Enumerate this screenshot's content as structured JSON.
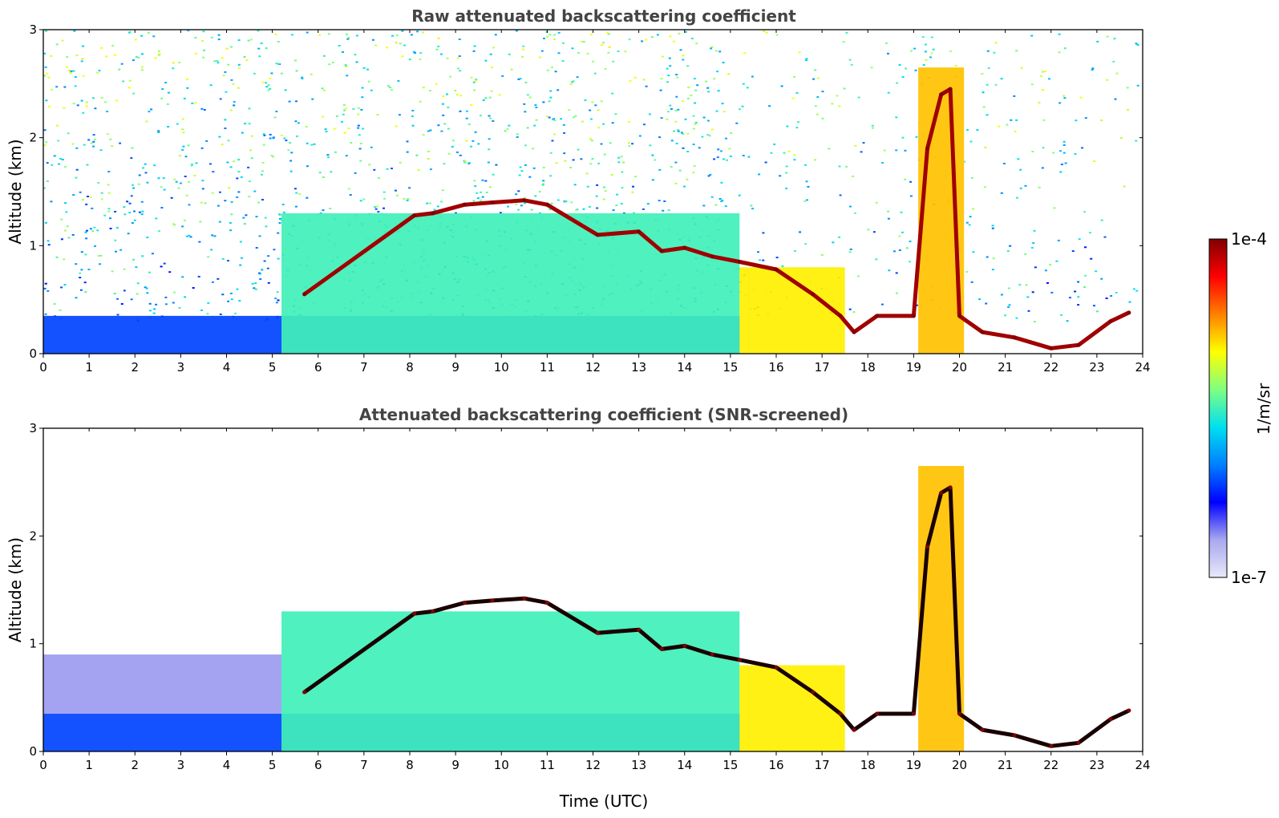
{
  "chart_data": [
    {
      "type": "heatmap",
      "title": "Raw attenuated backscattering coefficient",
      "xlabel": "",
      "ylabel": "Altitude (km)",
      "xlim": [
        0,
        24
      ],
      "ylim": [
        0,
        3
      ],
      "xticks": [
        "0",
        "1",
        "2",
        "3",
        "4",
        "5",
        "6",
        "7",
        "8",
        "9",
        "10",
        "11",
        "12",
        "13",
        "14",
        "15",
        "16",
        "17",
        "18",
        "19",
        "20",
        "21",
        "22",
        "23",
        "24"
      ],
      "yticks": [
        "0",
        "1",
        "2",
        "3"
      ],
      "grid": false,
      "layers": [
        {
          "name": "boundary-layer-aerosol",
          "x": [
            0,
            15.2
          ],
          "y": [
            0,
            0.35
          ],
          "level": 0.28
        },
        {
          "name": "growing-mixed-layer",
          "x": [
            5.2,
            15.2
          ],
          "y": [
            0,
            1.3
          ],
          "level": 0.5
        },
        {
          "name": "moist-layer",
          "x": [
            15.2,
            17.5
          ],
          "y": [
            0,
            0.8
          ],
          "level": 0.68
        },
        {
          "name": "elevated-plume",
          "x": [
            19.1,
            20.1
          ],
          "y": [
            0,
            2.65
          ],
          "level": 0.72
        }
      ],
      "cloud_base": [
        {
          "x": 5.7,
          "y": 0.55
        },
        {
          "x": 8.1,
          "y": 1.28
        },
        {
          "x": 8.5,
          "y": 1.3
        },
        {
          "x": 9.2,
          "y": 1.38
        },
        {
          "x": 9.8,
          "y": 1.4
        },
        {
          "x": 10.5,
          "y": 1.42
        },
        {
          "x": 11.0,
          "y": 1.38
        },
        {
          "x": 12.1,
          "y": 1.1
        },
        {
          "x": 13.0,
          "y": 1.13
        },
        {
          "x": 13.5,
          "y": 0.95
        },
        {
          "x": 14.0,
          "y": 0.98
        },
        {
          "x": 14.6,
          "y": 0.9
        },
        {
          "x": 15.2,
          "y": 0.85
        },
        {
          "x": 16.0,
          "y": 0.78
        },
        {
          "x": 16.8,
          "y": 0.55
        },
        {
          "x": 17.4,
          "y": 0.35
        },
        {
          "x": 17.7,
          "y": 0.2
        },
        {
          "x": 18.2,
          "y": 0.35
        },
        {
          "x": 19.0,
          "y": 0.35
        },
        {
          "x": 19.3,
          "y": 1.9
        },
        {
          "x": 19.6,
          "y": 2.4
        },
        {
          "x": 19.8,
          "y": 2.45
        },
        {
          "x": 20.0,
          "y": 0.35
        },
        {
          "x": 20.5,
          "y": 0.2
        },
        {
          "x": 21.2,
          "y": 0.15
        },
        {
          "x": 22.0,
          "y": 0.05
        },
        {
          "x": 22.6,
          "y": 0.08
        },
        {
          "x": 23.3,
          "y": 0.3
        },
        {
          "x": 23.7,
          "y": 0.38
        }
      ]
    },
    {
      "type": "heatmap",
      "title": "Attenuated backscattering coefficient (SNR-screened)",
      "xlabel": "Time (UTC)",
      "ylabel": "Altitude (km)",
      "xlim": [
        0,
        24
      ],
      "ylim": [
        0,
        3
      ],
      "xticks": [
        "0",
        "1",
        "2",
        "3",
        "4",
        "5",
        "6",
        "7",
        "8",
        "9",
        "10",
        "11",
        "12",
        "13",
        "14",
        "15",
        "16",
        "17",
        "18",
        "19",
        "20",
        "21",
        "22",
        "23",
        "24"
      ],
      "yticks": [
        "0",
        "1",
        "2",
        "3"
      ],
      "grid": false,
      "layers": [
        {
          "name": "boundary-layer-aerosol",
          "x": [
            0,
            15.2
          ],
          "y": [
            0,
            0.35
          ],
          "level": 0.28
        },
        {
          "name": "residual-layer",
          "x": [
            0,
            5.2
          ],
          "y": [
            0.35,
            0.9
          ],
          "level": 0.12
        },
        {
          "name": "growing-mixed-layer",
          "x": [
            5.2,
            15.2
          ],
          "y": [
            0,
            1.3
          ],
          "level": 0.5
        },
        {
          "name": "moist-layer",
          "x": [
            15.2,
            17.5
          ],
          "y": [
            0,
            0.8
          ],
          "level": 0.68
        },
        {
          "name": "elevated-plume",
          "x": [
            19.1,
            20.1
          ],
          "y": [
            0,
            2.65
          ],
          "level": 0.72
        }
      ],
      "cloud_base": [
        {
          "x": 5.7,
          "y": 0.55
        },
        {
          "x": 8.1,
          "y": 1.28
        },
        {
          "x": 8.5,
          "y": 1.3
        },
        {
          "x": 9.2,
          "y": 1.38
        },
        {
          "x": 9.8,
          "y": 1.4
        },
        {
          "x": 10.5,
          "y": 1.42
        },
        {
          "x": 11.0,
          "y": 1.38
        },
        {
          "x": 12.1,
          "y": 1.1
        },
        {
          "x": 13.0,
          "y": 1.13
        },
        {
          "x": 13.5,
          "y": 0.95
        },
        {
          "x": 14.0,
          "y": 0.98
        },
        {
          "x": 14.6,
          "y": 0.9
        },
        {
          "x": 15.2,
          "y": 0.85
        },
        {
          "x": 16.0,
          "y": 0.78
        },
        {
          "x": 16.8,
          "y": 0.55
        },
        {
          "x": 17.4,
          "y": 0.35
        },
        {
          "x": 17.7,
          "y": 0.2
        },
        {
          "x": 18.2,
          "y": 0.35
        },
        {
          "x": 19.0,
          "y": 0.35
        },
        {
          "x": 19.3,
          "y": 1.9
        },
        {
          "x": 19.6,
          "y": 2.4
        },
        {
          "x": 19.8,
          "y": 2.45
        },
        {
          "x": 20.0,
          "y": 0.35
        },
        {
          "x": 20.5,
          "y": 0.2
        },
        {
          "x": 21.2,
          "y": 0.15
        },
        {
          "x": 22.0,
          "y": 0.05
        },
        {
          "x": 22.6,
          "y": 0.08
        },
        {
          "x": 23.3,
          "y": 0.3
        },
        {
          "x": 23.7,
          "y": 0.38
        }
      ]
    }
  ],
  "colorbar": {
    "label": "1/m/sr",
    "max_label": "1e-4",
    "min_label": "1e-7",
    "colormap": "jet",
    "colors": [
      "#e8e8fa",
      "#a8a8f0",
      "#0000ff",
      "#0080ff",
      "#00e0f0",
      "#80ff80",
      "#ffff00",
      "#ff8000",
      "#ff0000",
      "#800000"
    ]
  }
}
